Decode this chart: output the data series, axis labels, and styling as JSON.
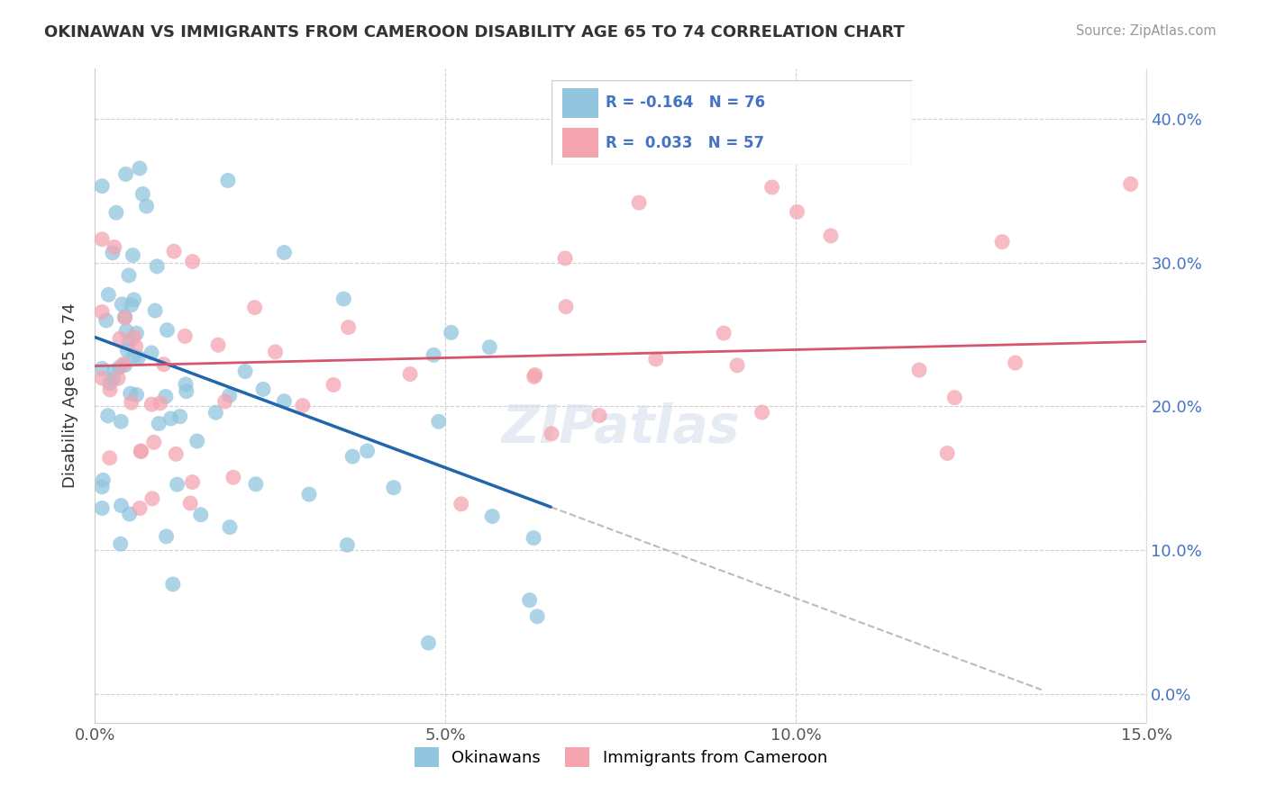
{
  "title": "OKINAWAN VS IMMIGRANTS FROM CAMEROON DISABILITY AGE 65 TO 74 CORRELATION CHART",
  "source_text": "Source: ZipAtlas.com",
  "ylabel": "Disability Age 65 to 74",
  "xlim": [
    0.0,
    0.15
  ],
  "ylim": [
    -0.02,
    0.435
  ],
  "xtick_labels": [
    "0.0%",
    "5.0%",
    "10.0%",
    "15.0%"
  ],
  "xtick_vals": [
    0.0,
    0.05,
    0.1,
    0.15
  ],
  "ytick_labels_right": [
    "0.0%",
    "10.0%",
    "20.0%",
    "30.0%",
    "40.0%"
  ],
  "ytick_vals": [
    0.0,
    0.1,
    0.2,
    0.3,
    0.4
  ],
  "R_blue": -0.164,
  "N_blue": 76,
  "R_pink": 0.033,
  "N_pink": 57,
  "blue_scatter_color": "#92c5de",
  "pink_scatter_color": "#f4a5b0",
  "blue_line_color": "#2166ac",
  "pink_line_color": "#d6546e",
  "gray_dash_color": "#bbbbbb",
  "legend_label_blue": "Okinawans",
  "legend_label_pink": "Immigrants from Cameroon",
  "background_color": "#ffffff",
  "grid_color": "#d0d0d0",
  "text_color_blue": "#4472c4",
  "title_color": "#333333"
}
